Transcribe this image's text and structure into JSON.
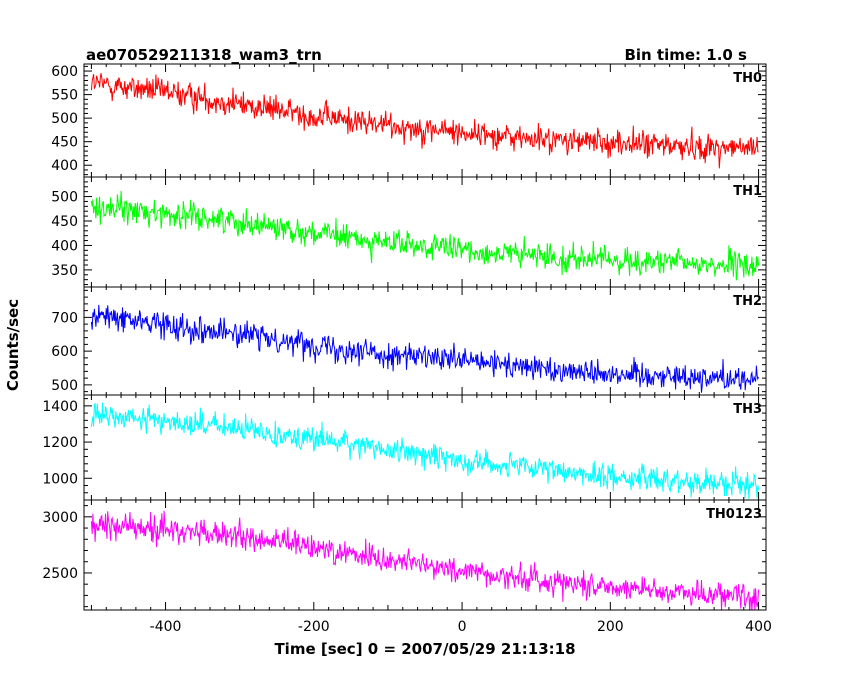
{
  "chart_data": {
    "type": "line",
    "title": "ae070529211318_wam3_trn",
    "subtitle": "Bin time: 1.0 s",
    "xlabel": "Time [sec] 0 = 2007/05/29 21:13:18",
    "ylabel": "Counts/sec",
    "xlim": [
      -510,
      410
    ],
    "x_ticks": [
      -400,
      -200,
      0,
      200,
      400
    ],
    "grid": false,
    "panels": [
      {
        "name": "TH0",
        "color": "#ff0000",
        "ylim": [
          375,
          615
        ],
        "y_ticks": [
          400,
          450,
          500,
          550,
          600
        ],
        "x": [
          -500,
          -400,
          -300,
          -200,
          -100,
          0,
          100,
          200,
          300,
          400
        ],
        "values": [
          575,
          555,
          530,
          505,
          485,
          470,
          455,
          448,
          440,
          435
        ]
      },
      {
        "name": "TH1",
        "color": "#00ff00",
        "ylim": [
          315,
          540
        ],
        "y_ticks": [
          350,
          400,
          450,
          500
        ],
        "x": [
          -500,
          -400,
          -300,
          -200,
          -100,
          0,
          100,
          200,
          300,
          400
        ],
        "values": [
          480,
          465,
          450,
          425,
          405,
          390,
          378,
          370,
          363,
          358
        ]
      },
      {
        "name": "TH2",
        "color": "#0000ff",
        "ylim": [
          470,
          790
        ],
        "y_ticks": [
          500,
          600,
          700
        ],
        "x": [
          -500,
          -400,
          -300,
          -200,
          -100,
          0,
          100,
          200,
          300,
          400
        ],
        "values": [
          705,
          680,
          650,
          620,
          590,
          570,
          550,
          535,
          525,
          518
        ]
      },
      {
        "name": "TH3",
        "color": "#00ffff",
        "ylim": [
          880,
          1460
        ],
        "y_ticks": [
          1000,
          1200,
          1400
        ],
        "x": [
          -500,
          -400,
          -300,
          -200,
          -100,
          0,
          100,
          200,
          300,
          400
        ],
        "values": [
          1345,
          1320,
          1270,
          1220,
          1160,
          1100,
          1050,
          1010,
          985,
          965
        ]
      },
      {
        "name": "TH0123",
        "color": "#ff00ff",
        "ylim": [
          2170,
          3150
        ],
        "y_ticks": [
          2500,
          3000
        ],
        "x": [
          -500,
          -400,
          -300,
          -200,
          -100,
          0,
          100,
          200,
          300,
          400
        ],
        "values": [
          2930,
          2890,
          2820,
          2730,
          2620,
          2520,
          2440,
          2380,
          2330,
          2290
        ]
      }
    ]
  }
}
